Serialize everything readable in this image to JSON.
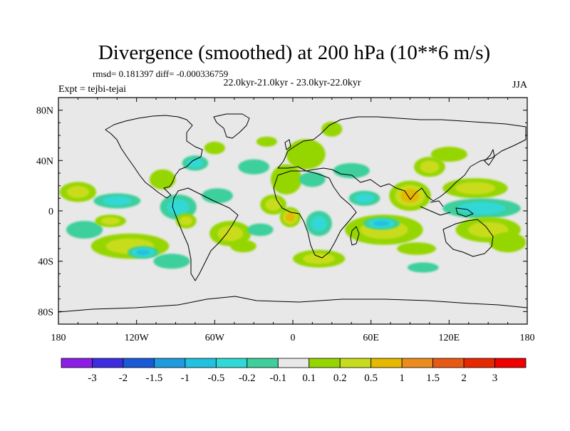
{
  "chart_data": {
    "type": "heatmap",
    "title": "Divergence (smoothed) at 200 hPa (10**6 m/s)",
    "stats_text": "rmsd= 0.181397 diff= -0.000336759",
    "subtitle": "22.0kyr-21.0kyr - 23.0kyr-22.0kyr",
    "left_label": "Expt = tejbi-tejai",
    "right_label": "JJA",
    "x_ticks": [
      {
        "value": -180,
        "label": "180"
      },
      {
        "value": -120,
        "label": "120W"
      },
      {
        "value": -60,
        "label": "60W"
      },
      {
        "value": 0,
        "label": "0"
      },
      {
        "value": 60,
        "label": "60E"
      },
      {
        "value": 120,
        "label": "120E"
      },
      {
        "value": 180,
        "label": "180"
      }
    ],
    "y_ticks": [
      {
        "value": 80,
        "label": "80N"
      },
      {
        "value": 40,
        "label": "40N"
      },
      {
        "value": 0,
        "label": "0"
      },
      {
        "value": -40,
        "label": "40S"
      },
      {
        "value": -80,
        "label": "80S"
      }
    ],
    "xlim": [
      -180,
      180
    ],
    "ylim": [
      -90,
      90
    ],
    "colorbar": {
      "labels": [
        "-3",
        "-2",
        "-1.5",
        "-1",
        "-0.5",
        "-0.2",
        "-0.1",
        "0.1",
        "0.2",
        "0.5",
        "1",
        "1.5",
        "2",
        "3"
      ],
      "colors": [
        "#8c1fe6",
        "#3e2de0",
        "#1a5ad6",
        "#1f9be0",
        "#21c1e0",
        "#30d8d6",
        "#3ecf9c",
        "#e8e8e8",
        "#96d600",
        "#c8dc1e",
        "#e6b800",
        "#ec8c1e",
        "#e85a14",
        "#e62800",
        "#f00000"
      ]
    },
    "regions": [
      {
        "lon": -165,
        "lat": 15,
        "rx": 14,
        "ry": 8,
        "level": 2
      },
      {
        "lon": -135,
        "lat": 8,
        "rx": 18,
        "ry": 6,
        "level": -2
      },
      {
        "lon": -125,
        "lat": -28,
        "rx": 30,
        "ry": 10,
        "level": 2
      },
      {
        "lon": -115,
        "lat": -33,
        "rx": 12,
        "ry": 5,
        "level": -3
      },
      {
        "lon": -160,
        "lat": -15,
        "rx": 14,
        "ry": 7,
        "level": -1
      },
      {
        "lon": -140,
        "lat": -8,
        "rx": 12,
        "ry": 5,
        "level": 2
      },
      {
        "lon": -100,
        "lat": 25,
        "rx": 10,
        "ry": 8,
        "level": 1
      },
      {
        "lon": -88,
        "lat": 3,
        "rx": 14,
        "ry": 10,
        "level": -2
      },
      {
        "lon": -82,
        "lat": -8,
        "rx": 8,
        "ry": 6,
        "level": 2
      },
      {
        "lon": -93,
        "lat": -40,
        "rx": 14,
        "ry": 6,
        "level": -1
      },
      {
        "lon": -75,
        "lat": 38,
        "rx": 10,
        "ry": 6,
        "level": -2
      },
      {
        "lon": -60,
        "lat": 50,
        "rx": 8,
        "ry": 5,
        "level": 1
      },
      {
        "lon": -58,
        "lat": 12,
        "rx": 12,
        "ry": 6,
        "level": -1
      },
      {
        "lon": -48,
        "lat": -18,
        "rx": 16,
        "ry": 10,
        "level": 2
      },
      {
        "lon": -38,
        "lat": -28,
        "rx": 10,
        "ry": 5,
        "level": 1
      },
      {
        "lon": -30,
        "lat": 35,
        "rx": 12,
        "ry": 6,
        "level": -1
      },
      {
        "lon": -20,
        "lat": 55,
        "rx": 8,
        "ry": 4,
        "level": 1
      },
      {
        "lon": -15,
        "lat": 5,
        "rx": 10,
        "ry": 8,
        "level": 2
      },
      {
        "lon": -25,
        "lat": -15,
        "rx": 10,
        "ry": 5,
        "level": -1
      },
      {
        "lon": -5,
        "lat": 25,
        "rx": 12,
        "ry": 12,
        "level": 1
      },
      {
        "lon": 10,
        "lat": 45,
        "rx": 15,
        "ry": 12,
        "level": 1
      },
      {
        "lon": 15,
        "lat": 25,
        "rx": 10,
        "ry": 6,
        "level": -1
      },
      {
        "lon": 20,
        "lat": -10,
        "rx": 10,
        "ry": 10,
        "level": -2
      },
      {
        "lon": -2,
        "lat": -5,
        "rx": 8,
        "ry": 8,
        "level": 3
      },
      {
        "lon": 20,
        "lat": -38,
        "rx": 20,
        "ry": 7,
        "level": 2
      },
      {
        "lon": 45,
        "lat": 32,
        "rx": 14,
        "ry": 6,
        "level": -1
      },
      {
        "lon": 55,
        "lat": 10,
        "rx": 12,
        "ry": 6,
        "level": -2
      },
      {
        "lon": 70,
        "lat": -15,
        "rx": 30,
        "ry": 12,
        "level": 2
      },
      {
        "lon": 68,
        "lat": -10,
        "rx": 14,
        "ry": 5,
        "level": -3
      },
      {
        "lon": 90,
        "lat": 12,
        "rx": 16,
        "ry": 12,
        "level": 3
      },
      {
        "lon": 105,
        "lat": 35,
        "rx": 12,
        "ry": 8,
        "level": 2
      },
      {
        "lon": 120,
        "lat": 45,
        "rx": 14,
        "ry": 6,
        "level": 1
      },
      {
        "lon": 140,
        "lat": 18,
        "rx": 25,
        "ry": 8,
        "level": 2
      },
      {
        "lon": 145,
        "lat": 2,
        "rx": 30,
        "ry": 8,
        "level": -2
      },
      {
        "lon": 150,
        "lat": -15,
        "rx": 25,
        "ry": 10,
        "level": 2
      },
      {
        "lon": 165,
        "lat": -25,
        "rx": 14,
        "ry": 8,
        "level": 1
      },
      {
        "lon": 95,
        "lat": -30,
        "rx": 15,
        "ry": 5,
        "level": 1
      },
      {
        "lon": 100,
        "lat": -45,
        "rx": 12,
        "ry": 4,
        "level": -1
      },
      {
        "lon": 30,
        "lat": 65,
        "rx": 8,
        "ry": 6,
        "level": 1
      }
    ]
  }
}
